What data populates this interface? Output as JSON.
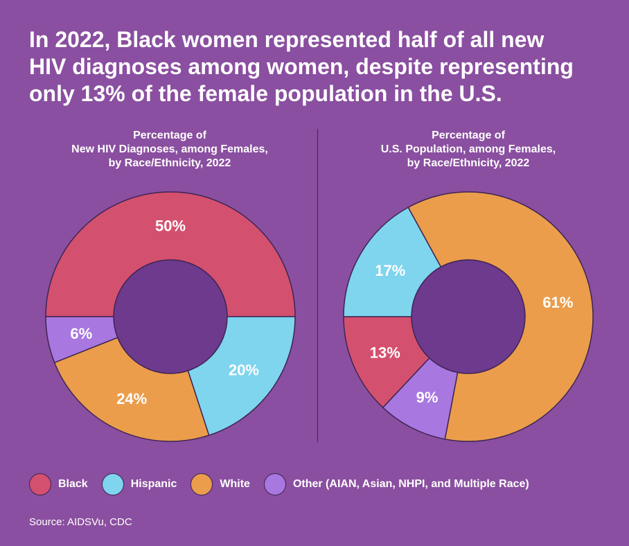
{
  "headline": {
    "line1": "In 2022, Black women represented half of all new",
    "line2": "HIV diagnoses among women, despite representing",
    "line3": "only 13% of the female population in the U.S."
  },
  "colors": {
    "Black": "#d4506f",
    "Hispanic": "#7fd4ee",
    "White": "#eb9d4b",
    "Other": "#a877e0",
    "hole": "#6d3a8e",
    "outline": "#3d2452"
  },
  "chart_data": [
    {
      "type": "pie",
      "title_lines": [
        "Percentage of",
        "New HIV Diagnoses, among Females,",
        "by Race/Ethnicity, 2022"
      ],
      "categories": [
        "Black",
        "Hispanic",
        "White",
        "Other"
      ],
      "values": [
        50,
        20,
        24,
        6
      ],
      "labels": [
        "50%",
        "20%",
        "24%",
        "6%"
      ],
      "unit": "%"
    },
    {
      "type": "pie",
      "title_lines": [
        "Percentage of",
        "U.S. Population, among Females,",
        "by Race/Ethnicity, 2022"
      ],
      "categories": [
        "Black",
        "Hispanic",
        "White",
        "Other"
      ],
      "values": [
        13,
        17,
        61,
        9
      ],
      "labels": [
        "13%",
        "17%",
        "61%",
        "9%"
      ],
      "unit": "%"
    }
  ],
  "legend": [
    {
      "key": "Black",
      "label": "Black"
    },
    {
      "key": "Hispanic",
      "label": "Hispanic"
    },
    {
      "key": "White",
      "label": "White"
    },
    {
      "key": "Other",
      "label": "Other (AIAN, Asian, NHPI, and Multiple Race)"
    }
  ],
  "source": "Source: AIDSVu, CDC"
}
